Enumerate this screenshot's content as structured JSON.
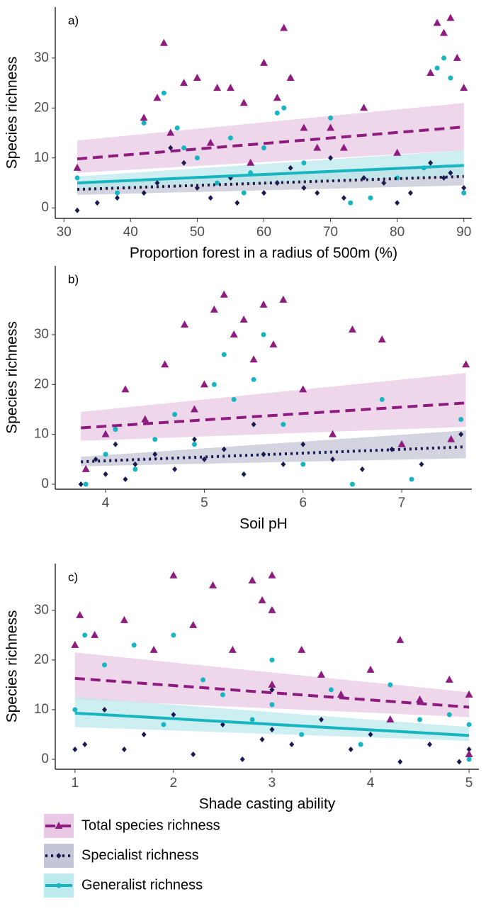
{
  "chart_data": [
    {
      "type": "scatter",
      "panel_label": "a)",
      "xlabel": "Proportion forest in a radius of 500m (%)",
      "ylabel": "Species richness",
      "xlim": [
        28.7,
        91.2
      ],
      "ylim": [
        -2.1,
        40.2
      ],
      "xticks": [
        30,
        40,
        50,
        60,
        70,
        80,
        90
      ],
      "yticks": [
        0,
        10,
        20,
        30
      ],
      "series": [
        {
          "color": "#8e1b7e",
          "x": [
            32,
            42,
            44,
            45,
            48,
            50,
            53,
            55,
            57,
            60,
            62,
            63,
            64,
            66,
            70,
            72,
            75,
            80,
            85,
            86,
            87,
            88,
            89,
            90,
            58,
            68,
            46,
            52
          ],
          "values": [
            8,
            18,
            22,
            33,
            25,
            26,
            24,
            24,
            21,
            29,
            22,
            36,
            26,
            16,
            16,
            12,
            20,
            11,
            27,
            37,
            35,
            38,
            30,
            24,
            9,
            12,
            15,
            13
          ],
          "fit": {
            "x": [
              32,
              90
            ],
            "values": [
              9.8,
              16.2
            ],
            "lower": [
              7,
              11.5
            ],
            "upper": [
              13.5,
              21
            ]
          }
        },
        {
          "color": "#1b1b4f",
          "x": [
            32,
            35,
            38,
            42,
            44,
            48,
            50,
            52,
            55,
            58,
            60,
            62,
            64,
            66,
            68,
            70,
            72,
            75,
            78,
            80,
            82,
            85,
            87,
            88,
            90,
            46,
            56
          ],
          "values": [
            -0.5,
            1,
            2,
            3,
            5,
            9,
            4,
            2,
            6,
            7,
            3,
            5,
            8,
            4,
            3,
            10,
            2,
            6,
            5,
            1,
            3,
            9,
            6,
            7,
            4,
            12,
            1
          ],
          "fit": {
            "x": [
              32,
              90
            ],
            "values": [
              3.7,
              6.3
            ],
            "lower": [
              2.6,
              4.5
            ],
            "upper": [
              5,
              8.5
            ]
          }
        },
        {
          "color": "#17b5c0",
          "x": [
            32,
            38,
            42,
            45,
            47,
            50,
            53,
            55,
            57,
            60,
            62,
            63,
            64,
            66,
            70,
            73,
            76,
            80,
            84,
            86,
            87,
            88,
            90,
            48,
            58
          ],
          "values": [
            6,
            3,
            17,
            23,
            16,
            10,
            5,
            14,
            3,
            12,
            19,
            20,
            26,
            9,
            18,
            1,
            2,
            6,
            8,
            28,
            30,
            26,
            3,
            12,
            7
          ],
          "fit": {
            "x": [
              32,
              90
            ],
            "values": [
              5,
              8.5
            ],
            "lower": [
              3.8,
              6.5
            ],
            "upper": [
              6.3,
              11.5
            ]
          }
        }
      ]
    },
    {
      "type": "scatter",
      "panel_label": "b)",
      "xlabel": "Soil pH",
      "ylabel": "Species richness",
      "xlim": [
        3.49,
        7.71
      ],
      "ylim": [
        -1,
        43.8
      ],
      "xticks": [
        4,
        5,
        6,
        7
      ],
      "yticks": [
        0,
        10,
        20,
        30
      ],
      "series": [
        {
          "color": "#8e1b7e",
          "x": [
            3.8,
            4.0,
            4.2,
            4.4,
            4.6,
            4.8,
            5.0,
            5.2,
            5.3,
            5.4,
            5.5,
            5.6,
            5.7,
            5.8,
            6.0,
            6.3,
            6.5,
            6.8,
            7.0,
            7.5,
            7.65,
            4.9,
            5.1
          ],
          "values": [
            3,
            10,
            19,
            13,
            24,
            32,
            20,
            38,
            30,
            33,
            25,
            36,
            28,
            37,
            19,
            10,
            31,
            29,
            8,
            9,
            24,
            15,
            35
          ],
          "fit": {
            "x": [
              3.75,
              7.65
            ],
            "values": [
              11.3,
              16.3
            ],
            "lower": [
              8.7,
              11.5
            ],
            "upper": [
              14.5,
              22.3
            ]
          }
        },
        {
          "color": "#1b1b4f",
          "x": [
            3.75,
            3.9,
            4.0,
            4.1,
            4.2,
            4.3,
            4.5,
            4.7,
            4.9,
            5.0,
            5.2,
            5.4,
            5.5,
            5.6,
            5.8,
            6.0,
            6.3,
            6.6,
            6.9,
            7.2,
            7.6
          ],
          "values": [
            0,
            5,
            2,
            8,
            1,
            4,
            6,
            3,
            9,
            5,
            7,
            2,
            12,
            6,
            4,
            8,
            5,
            3,
            7,
            4,
            10
          ],
          "fit": {
            "x": [
              3.75,
              7.65
            ],
            "values": [
              4.5,
              7.5
            ],
            "lower": [
              3.6,
              5.2
            ],
            "upper": [
              5.5,
              10.8
            ]
          }
        },
        {
          "color": "#17b5c0",
          "x": [
            3.8,
            4.0,
            4.1,
            4.3,
            4.5,
            4.7,
            4.9,
            5.1,
            5.2,
            5.3,
            5.5,
            5.6,
            5.8,
            6.0,
            6.5,
            6.8,
            7.1,
            7.6
          ],
          "values": [
            0,
            6,
            11,
            3,
            9,
            14,
            8,
            20,
            26,
            17,
            21,
            30,
            12,
            4,
            0,
            17,
            1,
            13
          ]
        }
      ]
    },
    {
      "type": "scatter",
      "panel_label": "c)",
      "xlabel": "Shade casting ability",
      "ylabel": "Species richness",
      "xlim": [
        0.8,
        5.1
      ],
      "ylim": [
        -2,
        39.4
      ],
      "xticks": [
        1,
        2,
        3,
        4,
        5
      ],
      "yticks": [
        0,
        10,
        20,
        30
      ],
      "series": [
        {
          "color": "#8e1b7e",
          "x": [
            1,
            1.05,
            1.2,
            1.5,
            1.8,
            2.0,
            2.2,
            2.4,
            2.6,
            2.8,
            2.9,
            3,
            3,
            3,
            3.3,
            3.5,
            3.7,
            4.0,
            4.2,
            4.3,
            4.5,
            4.8,
            5,
            5
          ],
          "values": [
            23,
            29,
            25,
            28,
            22,
            37,
            27,
            35,
            22,
            36,
            32,
            37,
            30,
            15,
            22,
            17,
            13,
            18,
            8,
            24,
            12,
            16,
            13,
            1
          ],
          "fit": {
            "x": [
              1,
              5
            ],
            "values": [
              16.3,
              10.5
            ],
            "lower": [
              12,
              8.5
            ],
            "upper": [
              21.5,
              13.5
            ]
          }
        },
        {
          "color": "#1b1b4f",
          "x": [
            1,
            1.1,
            1.3,
            1.5,
            1.7,
            2.0,
            2.2,
            2.5,
            2.7,
            2.9,
            3,
            3,
            3.2,
            3.5,
            3.8,
            4.0,
            4.3,
            4.6,
            4.9,
            5
          ],
          "values": [
            2,
            3,
            10,
            2,
            5,
            9,
            1,
            7,
            0,
            4,
            14,
            6,
            3,
            8,
            2,
            5,
            -0.5,
            3,
            -0.5,
            2
          ]
        },
        {
          "color": "#17b5c0",
          "x": [
            1,
            1.1,
            1.3,
            1.6,
            1.9,
            2.0,
            2.3,
            2.5,
            2.8,
            3,
            3,
            3,
            3.3,
            3.6,
            3.9,
            4.2,
            4.5,
            4.8,
            5,
            5
          ],
          "values": [
            10,
            25,
            19,
            23,
            7,
            25,
            16,
            13,
            8,
            30,
            20,
            11,
            5,
            14,
            3,
            15,
            8,
            9,
            0,
            7
          ],
          "fit": {
            "x": [
              1,
              5
            ],
            "values": [
              9.3,
              4.8
            ],
            "lower": [
              6.5,
              3.7
            ],
            "upper": [
              12.5,
              6.5
            ]
          }
        }
      ]
    }
  ],
  "legend": [
    {
      "name": "Total species richness",
      "color": "#8e1b7e",
      "ribbon_color": "#e8c8e4",
      "marker": "triangle",
      "line_style": "dashed"
    },
    {
      "name": "Specialist richness",
      "color": "#1b1b4f",
      "ribbon_color": "#c4c5d6",
      "marker": "diamond",
      "line_style": "dotted"
    },
    {
      "name": "Generalist richness",
      "color": "#17b5c0",
      "ribbon_color": "#bdeaec",
      "marker": "circle",
      "line_style": "solid"
    }
  ]
}
